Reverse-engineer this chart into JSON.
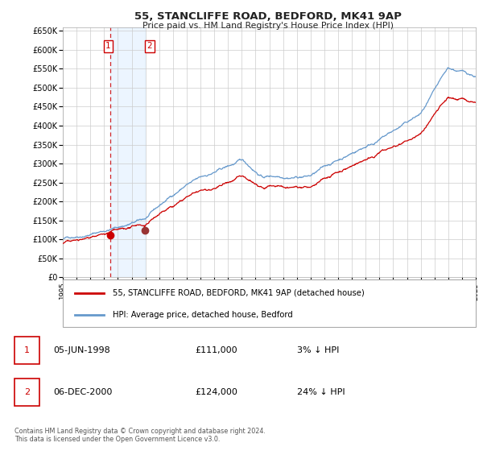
{
  "title": "55, STANCLIFFE ROAD, BEDFORD, MK41 9AP",
  "subtitle": "Price paid vs. HM Land Registry's House Price Index (HPI)",
  "ylim": [
    0,
    660000
  ],
  "hpi_color": "#6699cc",
  "price_color": "#cc0000",
  "sale1_date_label": "05-JUN-1998",
  "sale1_price": 111000,
  "sale1_hpi_pct": "3%",
  "sale2_date_label": "06-DEC-2000",
  "sale2_price": 124000,
  "sale2_hpi_pct": "24%",
  "legend_property": "55, STANCLIFFE ROAD, BEDFORD, MK41 9AP (detached house)",
  "legend_hpi": "HPI: Average price, detached house, Bedford",
  "footnote": "Contains HM Land Registry data © Crown copyright and database right 2024.\nThis data is licensed under the Open Government Licence v3.0.",
  "background_color": "#ffffff",
  "grid_color": "#cccccc",
  "sale1_year": 1998.43,
  "sale2_year": 2000.92
}
